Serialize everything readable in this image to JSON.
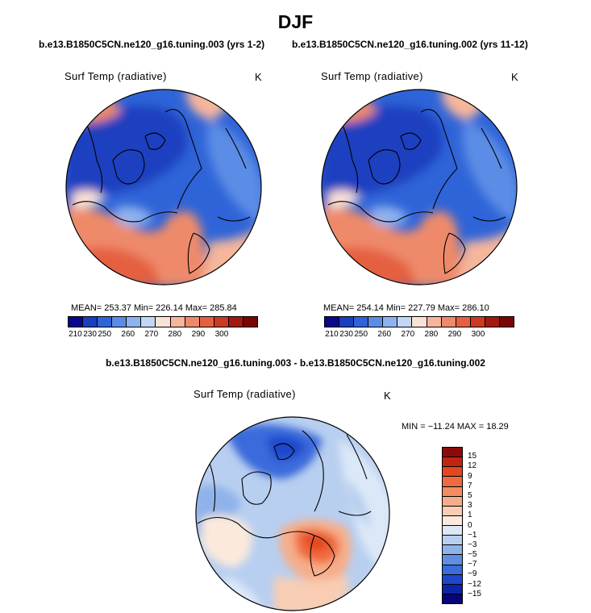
{
  "title": "DJF",
  "cases": {
    "left": "b.e13.B1850C5CN.ne120_g16.tuning.003 (yrs 1-2)",
    "right": "b.e13.B1850C5CN.ne120_g16.tuning.002 (yrs 11-12)",
    "diff": "b.e13.B1850C5CN.ne120_g16.tuning.003 - b.e13.B1850C5CN.ne120_g16.tuning.002"
  },
  "panels": {
    "left": {
      "var_label": "Surf Temp (radiative)",
      "units": "K",
      "stats": "MEAN= 253.37   Min= 226.14   Max= 285.84"
    },
    "right": {
      "var_label": "Surf Temp (radiative)",
      "units": "K",
      "stats": "MEAN= 254.14   Min= 227.79   Max= 286.10"
    },
    "diff": {
      "var_label": "Surf Temp (radiative)",
      "units": "K",
      "stats": "MIN = −11.24  MAX =  18.29"
    }
  },
  "colorbar_abs": {
    "labels": [
      "210",
      "230",
      "250",
      "260",
      "270",
      "280",
      "290",
      "300"
    ],
    "colors": [
      "#08088c",
      "#1a3fbf",
      "#2f64d8",
      "#5b8de6",
      "#8fb3ee",
      "#c3d6f5",
      "#fbe2d6",
      "#f5b69c",
      "#ee8a6a",
      "#e46041",
      "#cc3a22",
      "#a3190f",
      "#7a0505"
    ]
  },
  "colorbar_diff": {
    "labels": [
      "15",
      "12",
      "9",
      "7",
      "5",
      "3",
      "1",
      "0",
      "−1",
      "−3",
      "−5",
      "−7",
      "−9",
      "−12",
      "−15"
    ],
    "colors": [
      "#8c0a0a",
      "#c2250f",
      "#e5461f",
      "#ef6a3e",
      "#f38e63",
      "#f6ae8a",
      "#f8cdb3",
      "#fbe9dc",
      "#dce8f7",
      "#b8cff0",
      "#8fb2ea",
      "#5f8fe3",
      "#3b6bdc",
      "#1f46cc",
      "#0b24a8",
      "#06067a"
    ]
  }
}
